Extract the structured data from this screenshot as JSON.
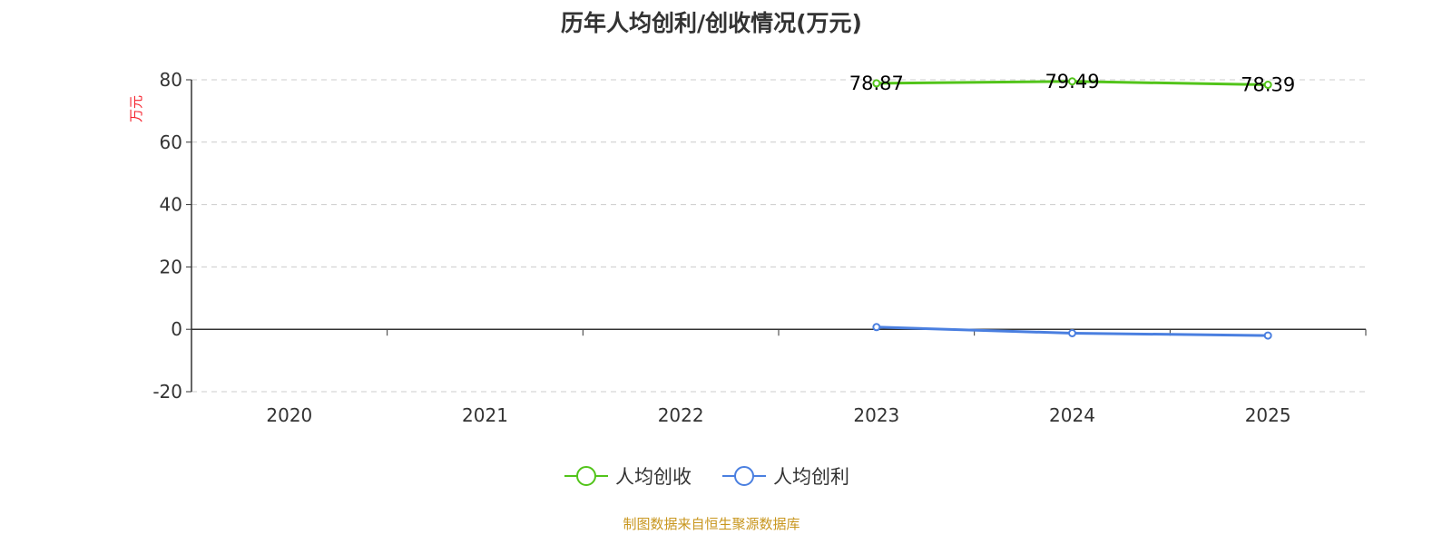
{
  "title": "历年人均创利/创收情况(万元)",
  "source": "制图数据来自恒生聚源数据库",
  "chart_data": {
    "type": "line",
    "title": "历年人均创利/创收情况(万元)",
    "ylabel": "万元",
    "categories": [
      "2020",
      "2021",
      "2022",
      "2023",
      "2024",
      "2025"
    ],
    "ylim": [
      -20,
      80
    ],
    "yticks": [
      -20,
      0,
      20,
      40,
      60,
      80
    ],
    "grid": true,
    "legend": "bottom",
    "series": [
      {
        "name": "人均创收",
        "color": "#52c41a",
        "values": [
          null,
          null,
          null,
          78.87,
          79.49,
          78.39
        ],
        "labels": [
          "",
          "",
          "",
          "78.87",
          "79.49",
          "78.39"
        ]
      },
      {
        "name": "人均创利",
        "color": "#4a7fe0",
        "values": [
          null,
          null,
          null,
          0.7,
          -1.25,
          -2.0
        ]
      }
    ]
  }
}
